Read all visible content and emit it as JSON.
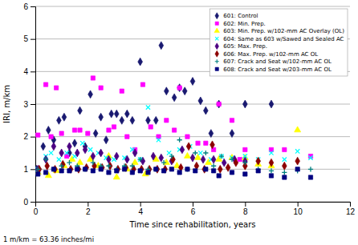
{
  "chart_data": {
    "type": "scatter",
    "xlabel": "Time since rehabilitation, years",
    "ylabel": "IRI, m/km",
    "annotations": [
      "1 m/km = 63.36 inches/mi"
    ],
    "xlim": [
      0,
      12
    ],
    "ylim": [
      0,
      6
    ],
    "xticks": [
      0,
      2,
      4,
      6,
      8,
      10,
      12
    ],
    "yticks": [
      0,
      1,
      2,
      3,
      4,
      5,
      6
    ],
    "grid": "y",
    "legend": "upper right",
    "series": [
      {
        "name": "601: Control",
        "color": "#191970",
        "marker": "diamond",
        "x": [
          0.05,
          0.3,
          0.5,
          0.7,
          0.9,
          1.1,
          1.3,
          1.5,
          1.7,
          1.9,
          2.1,
          2.3,
          2.5,
          2.7,
          2.9,
          3.1,
          3.3,
          3.5,
          3.7,
          4.0,
          4.3,
          4.6,
          4.8,
          5.0,
          5.3,
          5.5,
          5.7,
          6.0,
          6.3,
          6.5,
          6.7,
          7.0,
          7.5,
          8.0,
          9.0
        ],
        "values": [
          1.0,
          1.7,
          2.2,
          1.9,
          2.5,
          2.6,
          1.5,
          1.8,
          2.8,
          1.7,
          3.3,
          2.1,
          2.6,
          1.9,
          2.7,
          2.7,
          2.5,
          2.7,
          2.5,
          4.3,
          2.5,
          2.5,
          4.8,
          3.4,
          3.2,
          3.5,
          3.4,
          3.7,
          3.1,
          2.8,
          2.1,
          3.0,
          2.1,
          3.0,
          3.0
        ]
      },
      {
        "name": "602: Min. Prep.",
        "color": "#FF00FF",
        "marker": "square",
        "x": [
          0.1,
          0.4,
          0.6,
          0.8,
          1.0,
          1.2,
          1.5,
          1.7,
          2.0,
          2.2,
          2.5,
          2.8,
          3.0,
          3.3,
          3.5,
          3.8,
          4.1,
          4.4,
          4.7,
          5.0,
          5.3,
          5.5,
          5.8,
          6.2,
          6.5,
          6.8,
          7.0,
          7.5,
          7.8,
          8.0,
          9.0,
          9.5,
          10.5
        ],
        "values": [
          2.05,
          3.6,
          2.0,
          3.5,
          2.1,
          1.4,
          2.2,
          2.2,
          2.1,
          3.8,
          3.5,
          2.2,
          2.3,
          3.4,
          2.0,
          1.6,
          3.6,
          2.3,
          2.0,
          2.5,
          2.2,
          3.5,
          2.0,
          1.8,
          1.8,
          1.6,
          3.0,
          2.5,
          1.3,
          1.6,
          1.6,
          1.6,
          1.4
        ]
      },
      {
        "name": "603: Min. Prep. w/102-mm AC Overlay (OL)",
        "color": "#FFFF00",
        "marker": "triangle",
        "x": [
          0.1,
          0.5,
          0.8,
          1.1,
          1.4,
          1.7,
          2.1,
          2.4,
          2.8,
          3.1,
          3.5,
          3.8,
          4.2,
          4.6,
          5.0,
          5.4,
          5.8,
          6.2,
          6.6,
          7.0,
          7.5,
          8.0,
          8.5,
          9.0,
          10.0
        ],
        "values": [
          0.9,
          0.8,
          0.95,
          1.1,
          1.3,
          1.2,
          1.3,
          1.1,
          1.4,
          0.75,
          1.0,
          1.2,
          0.85,
          1.3,
          1.2,
          1.1,
          1.4,
          1.35,
          1.2,
          1.3,
          1.35,
          1.35,
          1.15,
          1.1,
          2.2
        ]
      },
      {
        "name": "604: Same as 603 w/Sawed and Sealed AC",
        "color": "#00FFFF",
        "marker": "x",
        "x": [
          0.1,
          0.4,
          0.6,
          0.9,
          1.2,
          1.5,
          1.8,
          2.1,
          2.4,
          2.7,
          3.0,
          3.4,
          3.7,
          4.0,
          4.3,
          4.7,
          5.1,
          5.5,
          5.9,
          6.3,
          6.7,
          7.1,
          7.5,
          8.0,
          8.5,
          9.0,
          9.5,
          10.0,
          10.5
        ],
        "values": [
          1.0,
          1.4,
          1.5,
          1.3,
          1.5,
          1.4,
          1.8,
          1.6,
          1.5,
          1.35,
          1.3,
          1.35,
          1.6,
          1.3,
          2.9,
          1.9,
          1.5,
          1.6,
          1.7,
          1.5,
          1.3,
          1.4,
          1.35,
          1.4,
          1.3,
          1.5,
          1.3,
          1.55,
          1.35
        ]
      },
      {
        "name": "605: Max. Prep.",
        "color": "#4B0082",
        "marker": "diamond",
        "x": [
          0.1,
          0.4,
          0.7,
          1.0,
          1.3,
          1.6,
          1.9,
          2.2,
          2.5,
          2.8,
          3.1,
          3.5,
          3.8,
          4.1,
          4.5,
          4.8,
          5.2,
          5.6,
          6.0,
          6.4,
          6.8,
          7.2,
          7.6,
          8.0
        ],
        "values": [
          1.0,
          1.3,
          1.7,
          1.5,
          1.7,
          1.5,
          1.6,
          1.4,
          1.5,
          1.3,
          1.4,
          1.3,
          1.5,
          1.25,
          1.4,
          1.35,
          1.25,
          1.6,
          1.35,
          1.3,
          1.3,
          1.2,
          1.3,
          1.25
        ]
      },
      {
        "name": "606: Max. Prep. w/102-mm AC OL",
        "color": "#8B0000",
        "marker": "diamond",
        "x": [
          0.15,
          0.45,
          0.75,
          1.05,
          1.35,
          1.65,
          1.95,
          2.25,
          2.55,
          2.85,
          3.15,
          3.45,
          3.75,
          4.05,
          4.35,
          4.65,
          4.95,
          5.25,
          5.55,
          5.85,
          6.15,
          6.45,
          6.75,
          7.05,
          7.35,
          7.65,
          8.0,
          8.5,
          9.0,
          9.5,
          10.0
        ],
        "values": [
          1.0,
          1.1,
          1.0,
          1.15,
          1.0,
          1.0,
          1.05,
          1.1,
          1.05,
          1.1,
          1.0,
          1.05,
          1.0,
          1.0,
          1.0,
          1.0,
          1.0,
          1.3,
          1.05,
          1.7,
          1.1,
          1.0,
          1.75,
          1.0,
          1.05,
          1.2,
          1.1,
          1.25,
          1.2,
          1.1,
          1.25
        ]
      },
      {
        "name": "607: Crack and Seat w/102-mm AC OL",
        "color": "#008080",
        "marker": "plus",
        "x": [
          0.1,
          0.4,
          0.7,
          1.0,
          1.3,
          1.6,
          1.9,
          2.2,
          2.5,
          2.8,
          3.1,
          3.4,
          3.7,
          4.0,
          4.3,
          4.6,
          4.9,
          5.2,
          5.5,
          5.8,
          6.1,
          6.5,
          6.8,
          7.1,
          7.5,
          8.0,
          8.5,
          9.0,
          9.5,
          10.0,
          10.5
        ],
        "values": [
          1.0,
          1.3,
          1.0,
          1.1,
          1.2,
          1.1,
          1.0,
          1.2,
          1.1,
          1.1,
          1.0,
          1.1,
          1.1,
          1.3,
          1.0,
          1.0,
          1.2,
          1.4,
          1.9,
          1.0,
          1.5,
          1.5,
          1.1,
          1.4,
          1.3,
          1.2,
          1.0,
          0.95,
          0.9,
          0.95,
          1.0
        ]
      },
      {
        "name": "608: Crack and Seat w/203-mm AC OL",
        "color": "#000080",
        "marker": "square",
        "x": [
          0.1,
          0.4,
          0.7,
          1.0,
          1.3,
          1.6,
          1.9,
          2.2,
          2.5,
          2.8,
          3.1,
          3.4,
          3.7,
          4.0,
          4.3,
          4.6,
          4.9,
          5.2,
          5.5,
          5.8,
          6.1,
          6.5,
          6.8,
          7.0,
          7.5,
          8.0,
          8.5,
          9.0,
          9.5,
          10.0,
          10.5
        ],
        "values": [
          0.85,
          0.9,
          1.0,
          0.95,
          0.95,
          1.0,
          1.0,
          0.95,
          1.0,
          0.9,
          0.95,
          1.0,
          0.9,
          0.95,
          0.9,
          1.0,
          0.95,
          1.0,
          0.9,
          1.0,
          0.95,
          1.0,
          0.95,
          0.8,
          0.9,
          0.85,
          0.95,
          0.8,
          0.75,
          1.0,
          0.75
        ]
      }
    ]
  }
}
